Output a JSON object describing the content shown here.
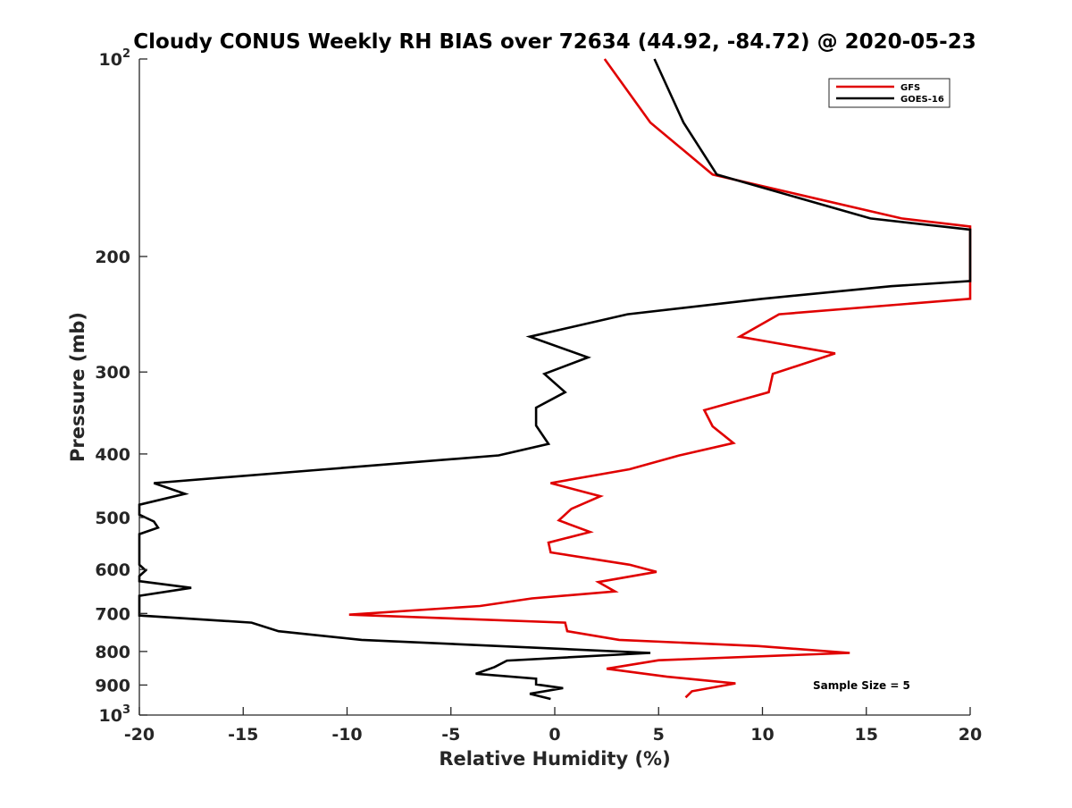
{
  "chart_data": {
    "type": "line",
    "title": "Cloudy CONUS Weekly RH BIAS over 72634 (44.92, -84.72) @ 2020-05-23",
    "xlabel": "Relative Humidity (%)",
    "ylabel": "Pressure (mb)",
    "xlim": [
      -20,
      20
    ],
    "ylim": [
      1000,
      100
    ],
    "yscale": "log",
    "x_ticks": [
      "-20",
      "-15",
      "-10",
      "-5",
      "0",
      "5",
      "10",
      "15",
      "20"
    ],
    "y_ticks": [
      {
        "value": 100,
        "label": "10",
        "sup": "2"
      },
      {
        "value": 200,
        "label": "200",
        "sup": ""
      },
      {
        "value": 300,
        "label": "300",
        "sup": ""
      },
      {
        "value": 400,
        "label": "400",
        "sup": ""
      },
      {
        "value": 500,
        "label": "500",
        "sup": ""
      },
      {
        "value": 600,
        "label": "600",
        "sup": ""
      },
      {
        "value": 700,
        "label": "700",
        "sup": ""
      },
      {
        "value": 800,
        "label": "800",
        "sup": ""
      },
      {
        "value": 900,
        "label": "900",
        "sup": ""
      },
      {
        "value": 1000,
        "label": "10",
        "sup": "3"
      }
    ],
    "grid": false,
    "legend_position": "top-right",
    "annotation": "Sample Size = 5",
    "series": [
      {
        "name": "GFS",
        "color": "#e00000",
        "points": [
          [
            2.4,
            100
          ],
          [
            4.6,
            125
          ],
          [
            7.6,
            150
          ],
          [
            16.7,
            175
          ],
          [
            20.0,
            180
          ],
          [
            20.0,
            232
          ],
          [
            10.8,
            245
          ],
          [
            8.9,
            265
          ],
          [
            13.5,
            281
          ],
          [
            10.5,
            302
          ],
          [
            10.3,
            322
          ],
          [
            7.2,
            343
          ],
          [
            7.6,
            363
          ],
          [
            8.6,
            385
          ],
          [
            6.0,
            402
          ],
          [
            3.6,
            422
          ],
          [
            -0.2,
            443
          ],
          [
            2.2,
            464
          ],
          [
            0.8,
            485
          ],
          [
            0.2,
            505
          ],
          [
            1.7,
            526
          ],
          [
            -0.3,
            546
          ],
          [
            -0.2,
            565
          ],
          [
            3.6,
            590
          ],
          [
            4.9,
            605
          ],
          [
            2.1,
            627
          ],
          [
            2.9,
            648
          ],
          [
            -1.1,
            664
          ],
          [
            -3.6,
            682
          ],
          [
            -9.9,
            703
          ],
          [
            0.5,
            723
          ],
          [
            0.6,
            745
          ],
          [
            3.1,
            768
          ],
          [
            9.8,
            785
          ],
          [
            14.2,
            804
          ],
          [
            5.0,
            825
          ],
          [
            2.5,
            850
          ],
          [
            5.4,
            874
          ],
          [
            8.7,
            895
          ],
          [
            6.6,
            920
          ],
          [
            6.3,
            940
          ]
        ]
      },
      {
        "name": "GOES-16",
        "color": "#000000",
        "points": [
          [
            4.8,
            100
          ],
          [
            6.2,
            125
          ],
          [
            7.8,
            150
          ],
          [
            15.2,
            175
          ],
          [
            20.0,
            182
          ],
          [
            20.0,
            218
          ],
          [
            16.2,
            222
          ],
          [
            10.0,
            232
          ],
          [
            3.5,
            245
          ],
          [
            -1.2,
            265
          ],
          [
            1.6,
            285
          ],
          [
            -0.5,
            302
          ],
          [
            0.5,
            322
          ],
          [
            -0.9,
            340
          ],
          [
            -0.9,
            362
          ],
          [
            -0.3,
            386
          ],
          [
            -2.7,
            402
          ],
          [
            -11.0,
            422
          ],
          [
            -19.3,
            443
          ],
          [
            -17.8,
            460
          ],
          [
            -20.0,
            478
          ],
          [
            -20.0,
            495
          ],
          [
            -19.3,
            507
          ],
          [
            -19.1,
            518
          ],
          [
            -20.0,
            530
          ],
          [
            -20.0,
            590
          ],
          [
            -19.7,
            602
          ],
          [
            -20.0,
            614
          ],
          [
            -20.0,
            625
          ],
          [
            -17.5,
            640
          ],
          [
            -20.0,
            658
          ],
          [
            -20.0,
            705
          ],
          [
            -14.6,
            723
          ],
          [
            -13.3,
            745
          ],
          [
            -9.3,
            768
          ],
          [
            4.6,
            804
          ],
          [
            -2.3,
            826
          ],
          [
            -2.9,
            845
          ],
          [
            -3.8,
            865
          ],
          [
            -0.9,
            880
          ],
          [
            -0.9,
            898
          ],
          [
            0.4,
            910
          ],
          [
            -1.2,
            928
          ],
          [
            -0.2,
            945
          ]
        ]
      }
    ]
  }
}
